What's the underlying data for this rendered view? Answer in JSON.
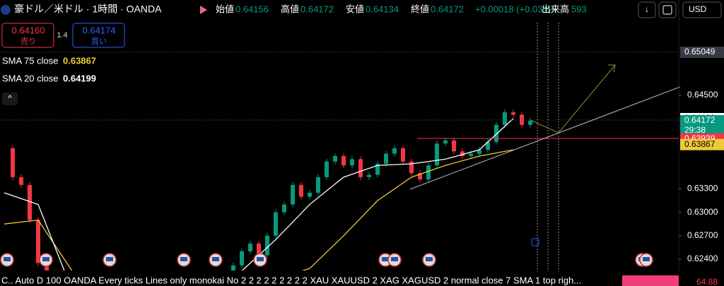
{
  "header": {
    "symbol": "豪ドル／米ドル · 1時間 · OANDA",
    "ohlc": [
      {
        "label": "始値",
        "value": "0.64156"
      },
      {
        "label": "高値",
        "value": "0.64172"
      },
      {
        "label": "安値",
        "value": "0.64134"
      },
      {
        "label": "終値",
        "value": "0.64172"
      }
    ],
    "change": "+0.00018 (+0.03%)",
    "volume_label": "出来高",
    "volume": "593",
    "currency": "USD"
  },
  "trade": {
    "sell_price": "0.64160",
    "sell_label": "売り",
    "spread": "1.4",
    "buy_price": "0.64174",
    "buy_label": "買い"
  },
  "indicators": [
    {
      "name": "SMA 75 close",
      "value": "0.63867",
      "color": "#f0c93a"
    },
    {
      "name": "SMA 20 close",
      "value": "0.64199",
      "color": "#ffffff"
    }
  ],
  "price_axis": {
    "ylim": [
      0.62255,
      0.65718
    ],
    "yticks": [
      {
        "value": 0.645,
        "label": "0.64500"
      },
      {
        "value": 0.633,
        "label": "0.63300"
      },
      {
        "value": 0.63,
        "label": "0.63000"
      },
      {
        "value": 0.627,
        "label": "0.62700"
      },
      {
        "value": 0.624,
        "label": "0.62400"
      }
    ],
    "markers": [
      {
        "value": 0.65049,
        "color": "#363a45",
        "text_color": "#ffffff"
      },
      {
        "value": 0.64199,
        "color": "#ffffff",
        "text_color": "#000000"
      },
      {
        "value": 0.64172,
        "color": "#089981",
        "text_color": "#ffffff",
        "countdown": "29:38"
      },
      {
        "value": 0.63939,
        "color": "#f23645",
        "text_color": "#ffffff"
      },
      {
        "value": 0.63867,
        "color": "#f0c93a",
        "text_color": "#000000"
      }
    ]
  },
  "candles": {
    "up_color": "#089981",
    "down_color": "#f23645",
    "closes": [
      0.6382,
      0.6345,
      0.6335,
      0.629,
      0.6235,
      0.6222,
      0.622,
      0.621,
      0.6205,
      0.62,
      0.6208,
      0.6215,
      0.621,
      0.6202,
      0.6212,
      0.622,
      0.6213,
      0.6205,
      0.6198,
      0.6207,
      0.6215,
      0.6222,
      0.6212,
      0.6205,
      0.6215,
      0.6222,
      0.6218,
      0.6232,
      0.625,
      0.626,
      0.6245,
      0.627,
      0.63,
      0.631,
      0.6335,
      0.632,
      0.6325,
      0.6345,
      0.6365,
      0.6372,
      0.636,
      0.6368,
      0.6345,
      0.6348,
      0.6362,
      0.6375,
      0.6382,
      0.6365,
      0.635,
      0.6342,
      0.636,
      0.6388,
      0.6392,
      0.6378,
      0.6372,
      0.6375,
      0.638,
      0.639,
      0.6412,
      0.6428,
      0.6425,
      0.6412,
      0.6417
    ]
  },
  "sma20": [
    0.6325,
    0.631,
    0.62,
    0.619,
    0.619,
    0.6195,
    0.6205,
    0.6225,
    0.6265,
    0.631,
    0.6345,
    0.636,
    0.6362,
    0.6368,
    0.638,
    0.642
  ],
  "sma75": [
    0.6285,
    0.629,
    0.6225,
    0.62,
    0.619,
    0.619,
    0.6195,
    0.6205,
    0.6215,
    0.6228,
    0.627,
    0.6315,
    0.6345,
    0.636,
    0.6372,
    0.638
  ],
  "footer": {
    "settings": "C.. Auto D 100 OANDA Every ticks Lines only monokai No 2 2 2 2 2 2 2 2 2 XAU XAUUSD 2 XAG XAGUSD 2 normal close 7 SMA 1 top righ...",
    "badge": "64.88"
  }
}
